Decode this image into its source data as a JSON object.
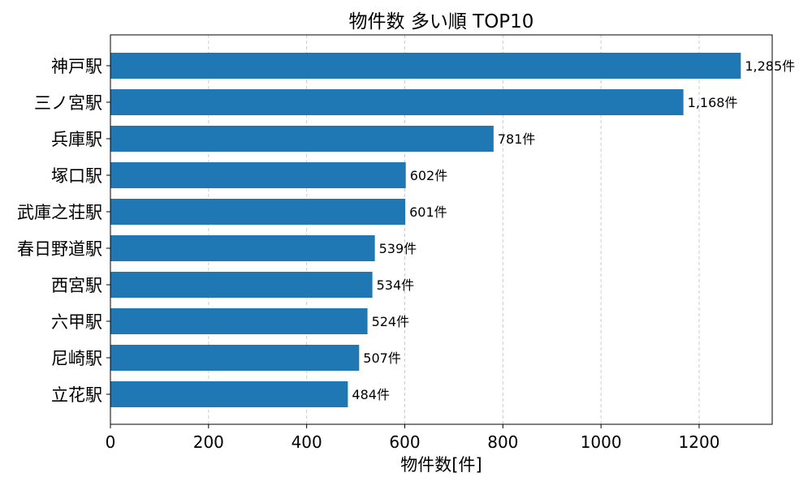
{
  "chart_data": {
    "type": "bar",
    "orientation": "horizontal",
    "title": "物件数 多い順 TOP10",
    "xlabel": "物件数[件]",
    "ylabel": "",
    "categories": [
      "神戸駅",
      "三ノ宮駅",
      "兵庫駅",
      "塚口駅",
      "武庫之荘駅",
      "春日野道駅",
      "西宮駅",
      "六甲駅",
      "尼崎駅",
      "立花駅"
    ],
    "values": [
      1285,
      1168,
      781,
      602,
      601,
      539,
      534,
      524,
      507,
      484
    ],
    "value_labels": [
      "1,285件",
      "1,168件",
      "781件",
      "602件",
      "601件",
      "539件",
      "534件",
      "524件",
      "507件",
      "484件"
    ],
    "xlim": [
      0,
      1349
    ],
    "xticks": [
      0,
      200,
      400,
      600,
      800,
      1000,
      1200
    ],
    "xtick_labels": [
      "0",
      "200",
      "400",
      "600",
      "800",
      "1000",
      "1200"
    ],
    "grid": "x-dashed",
    "bar_color": "#1f77b4",
    "grid_color": "#cccccc",
    "axis_color": "#000000"
  }
}
